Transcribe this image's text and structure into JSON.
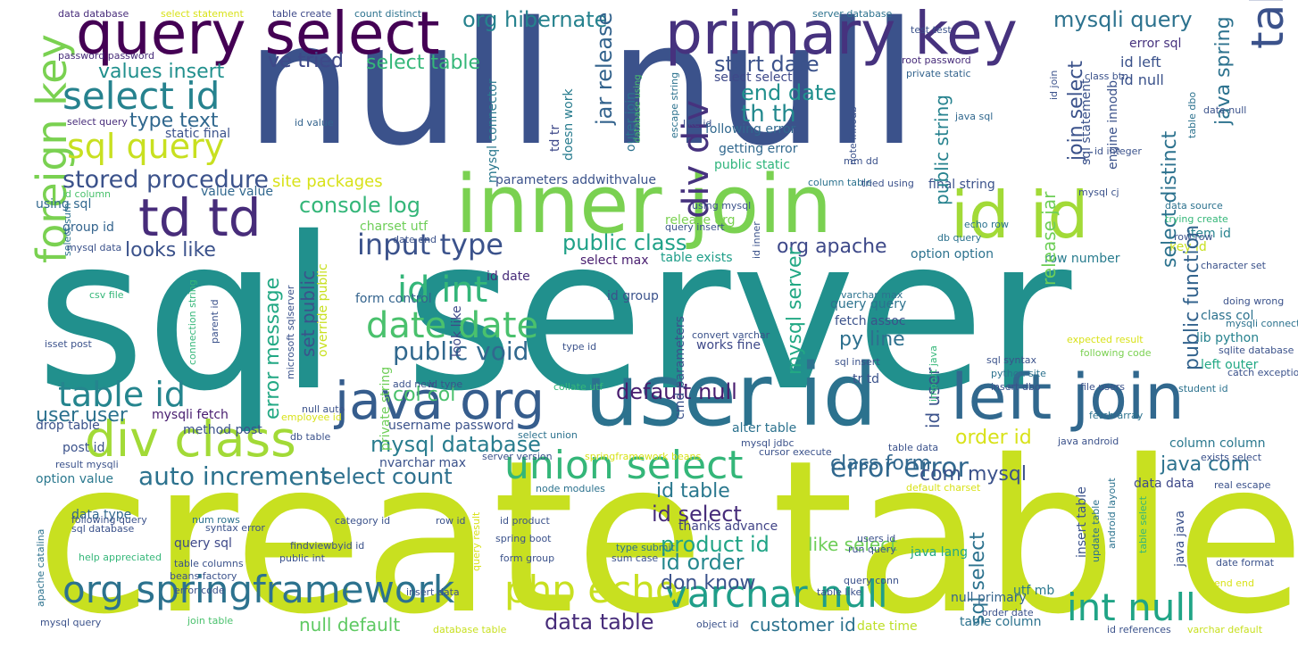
{
  "words": [
    {
      "text": "sql server",
      "color": "#21908d"
    },
    {
      "text": "create table",
      "color": "#c8e020"
    },
    {
      "text": "null null",
      "color": "#3b528b"
    },
    {
      "text": "inner join",
      "color": "#7ad151"
    },
    {
      "text": "user id",
      "color": "#2c728e"
    },
    {
      "text": "query select",
      "color": "#440154"
    },
    {
      "text": "primary key",
      "color": "#46327e"
    },
    {
      "text": "left join",
      "color": "#31688e"
    },
    {
      "text": "java org",
      "color": "#365d8d"
    },
    {
      "text": "div class",
      "color": "#a2da37"
    },
    {
      "text": "td td",
      "color": "#472c7a"
    },
    {
      "text": "id id",
      "color": "#a2da37"
    },
    {
      "text": "table table",
      "color": "#3b528b"
    },
    {
      "text": "foreign key",
      "color": "#7ad151"
    },
    {
      "text": "org springframework",
      "color": "#2c728e"
    },
    {
      "text": "union select",
      "color": "#34b679"
    },
    {
      "text": "varchar null",
      "color": "#1f9e89"
    },
    {
      "text": "int null",
      "color": "#20a486"
    },
    {
      "text": "php echo",
      "color": "#c8e020"
    },
    {
      "text": "sql query",
      "color": "#c8e020"
    },
    {
      "text": "select id",
      "color": "#26828e"
    },
    {
      "text": "input type",
      "color": "#3b528b"
    },
    {
      "text": "date date",
      "color": "#4ac16d"
    },
    {
      "text": "id int",
      "color": "#34b679"
    },
    {
      "text": "table id",
      "color": "#25858e"
    },
    {
      "text": "div div",
      "color": "#46327e"
    },
    {
      "text": "auto increment",
      "color": "#2c728e"
    },
    {
      "text": "error error",
      "color": "#31688e"
    },
    {
      "text": "public void",
      "color": "#31688e"
    },
    {
      "text": "stored procedure",
      "color": "#3b528b"
    },
    {
      "text": "console log",
      "color": "#34b679"
    },
    {
      "text": "public class",
      "color": "#1fa187"
    },
    {
      "text": "mysql database",
      "color": "#287c8e"
    },
    {
      "text": "select count",
      "color": "#2d708e"
    },
    {
      "text": "default null",
      "color": "#481d6f"
    },
    {
      "text": "product id",
      "color": "#20a486"
    },
    {
      "text": "id order",
      "color": "#24878e"
    },
    {
      "text": "id select",
      "color": "#472c7a"
    },
    {
      "text": "data table",
      "color": "#472c7a"
    },
    {
      "text": "th th",
      "color": "#23898e"
    },
    {
      "text": "end date",
      "color": "#21908d"
    },
    {
      "text": "start date",
      "color": "#3b528b"
    },
    {
      "text": "org hibernate",
      "color": "#26828e"
    },
    {
      "text": "mysqli query",
      "color": "#2c728e"
    },
    {
      "text": "values insert",
      "color": "#21908d"
    },
    {
      "text": "select table",
      "color": "#35b779"
    },
    {
      "text": "ve tried",
      "color": "#3e4989"
    },
    {
      "text": "type text",
      "color": "#31688e"
    },
    {
      "text": "looks like",
      "color": "#3b528b"
    },
    {
      "text": "org apache",
      "color": "#3e4989"
    },
    {
      "text": "py line",
      "color": "#2d708e"
    },
    {
      "text": "col col",
      "color": "#4ac16d"
    },
    {
      "text": "class form",
      "color": "#31688e"
    },
    {
      "text": "com mysql",
      "color": "#3b528b"
    },
    {
      "text": "java com",
      "color": "#2c728e"
    },
    {
      "text": "order id",
      "color": "#d8e219"
    },
    {
      "text": "user user",
      "color": "#2c728e"
    },
    {
      "text": "don know",
      "color": "#3b528b"
    },
    {
      "text": "customer id",
      "color": "#2c728e"
    },
    {
      "text": "null default",
      "color": "#5ec962"
    },
    {
      "text": "id table",
      "color": "#2a788e"
    },
    {
      "text": "like select",
      "color": "#6ece58"
    },
    {
      "text": "site packages",
      "color": "#d8e219"
    },
    {
      "text": "value value",
      "color": "#31688e"
    },
    {
      "text": "using sql",
      "color": "#31688e"
    },
    {
      "text": "group id",
      "color": "#33638d"
    },
    {
      "text": "drop table",
      "color": "#3b528b"
    },
    {
      "text": "mysqli fetch",
      "color": "#481d6f"
    },
    {
      "text": "method post",
      "color": "#3b528b"
    },
    {
      "text": "post id",
      "color": "#3b528b"
    },
    {
      "text": "option value",
      "color": "#2a788e"
    },
    {
      "text": "static final",
      "color": "#3b528b"
    },
    {
      "text": "data type",
      "color": "#31688e"
    },
    {
      "text": "query sql",
      "color": "#3e4989"
    },
    {
      "text": "thanks advance",
      "color": "#414487"
    },
    {
      "text": "java lang",
      "color": "#22a884"
    },
    {
      "text": "utf mb",
      "color": "#2a788e"
    },
    {
      "text": "null primary",
      "color": "#33638d"
    },
    {
      "text": "table column",
      "color": "#2c728e"
    },
    {
      "text": "date time",
      "color": "#bddf26"
    },
    {
      "text": "id null",
      "color": "#3b528b"
    },
    {
      "text": "id left",
      "color": "#3b528b"
    },
    {
      "text": "error sql",
      "color": "#46327e"
    },
    {
      "text": "item id",
      "color": "#26828e"
    },
    {
      "text": "key id",
      "color": "#c8e020"
    },
    {
      "text": "option option",
      "color": "#2c728e"
    },
    {
      "text": "row number",
      "color": "#287c8e"
    },
    {
      "text": "class col",
      "color": "#2c728e"
    },
    {
      "text": "lib python",
      "color": "#26828e"
    },
    {
      "text": "left outer",
      "color": "#22a884"
    },
    {
      "text": "data data",
      "color": "#3e4989"
    },
    {
      "text": "column column",
      "color": "#2a788e"
    },
    {
      "text": "username password",
      "color": "#3b528b"
    },
    {
      "text": "nvarchar max",
      "color": "#3b528b"
    },
    {
      "text": "alter table",
      "color": "#2c728e"
    },
    {
      "text": "works fine",
      "color": "#3e4989"
    },
    {
      "text": "query query",
      "color": "#2c728e"
    },
    {
      "text": "fetch assoc",
      "color": "#3b528b"
    },
    {
      "text": "tr td",
      "color": "#3b528b"
    },
    {
      "text": "id date",
      "color": "#472c7a"
    },
    {
      "text": "form control",
      "color": "#33638d"
    },
    {
      "text": "select max",
      "color": "#481d6f"
    },
    {
      "text": "table exists",
      "color": "#1f9e89"
    },
    {
      "text": "release org",
      "color": "#7ad151"
    },
    {
      "text": "charset utf",
      "color": "#6ece58"
    },
    {
      "text": "id group",
      "color": "#3b528b"
    },
    {
      "text": "parameters addwithvalue",
      "color": "#3b528b"
    },
    {
      "text": "getting error",
      "color": "#31688e"
    },
    {
      "text": "following error",
      "color": "#31688e"
    },
    {
      "text": "public static",
      "color": "#2fb47c"
    },
    {
      "text": "final string",
      "color": "#3b528b"
    },
    {
      "text": "select select",
      "color": "#3e4989"
    },
    {
      "text": "outer join",
      "color": "#2c728e"
    },
    {
      "text": "td tr",
      "color": "#3e4989"
    },
    {
      "text": "ve tried",
      "color": "#3e4989"
    },
    {
      "text": "jar release",
      "color": "#33638d"
    },
    {
      "text": "mysql connector",
      "color": "#2a788e"
    },
    {
      "text": "doesn work",
      "color": "#287c8e"
    },
    {
      "text": "database using",
      "color": "#4ac16d"
    },
    {
      "text": "java spring",
      "color": "#2c728e"
    },
    {
      "text": "join select",
      "color": "#3b528b"
    },
    {
      "text": "public string",
      "color": "#26828e"
    },
    {
      "text": "select distinct",
      "color": "#2c728e"
    },
    {
      "text": "public function",
      "color": "#33638d"
    },
    {
      "text": "release jar",
      "color": "#6ece58"
    },
    {
      "text": "sql statement",
      "color": "#3b528b"
    },
    {
      "text": "engine innodb",
      "color": "#3b528b"
    },
    {
      "text": "error message",
      "color": "#22a884"
    },
    {
      "text": "set public",
      "color": "#3b528b"
    },
    {
      "text": "override public",
      "color": "#c8e020"
    },
    {
      "text": "mysql server",
      "color": "#22a884"
    },
    {
      "text": "sql select",
      "color": "#2c728e"
    },
    {
      "text": "id user",
      "color": "#3b528b"
    },
    {
      "text": "private string",
      "color": "#6ece58"
    },
    {
      "text": "insert table",
      "color": "#3b528b"
    },
    {
      "text": "java java",
      "color": "#3b528b"
    },
    {
      "text": "look like",
      "color": "#3e4989"
    },
    {
      "text": "cmd parameters",
      "color": "#3b528b"
    },
    {
      "text": "data database",
      "color": "#472c7a"
    },
    {
      "text": "select statement",
      "color": "#d8e219"
    },
    {
      "text": "table create",
      "color": "#3e4989"
    },
    {
      "text": "count distinct",
      "color": "#2c728e"
    },
    {
      "text": "server database",
      "color": "#2c728e"
    },
    {
      "text": "test test",
      "color": "#3b528b"
    },
    {
      "text": "root password",
      "color": "#472c7a"
    },
    {
      "text": "private static",
      "color": "#33638d"
    },
    {
      "text": "password password",
      "color": "#472c7a"
    },
    {
      "text": "select query",
      "color": "#472c7a"
    },
    {
      "text": "id value",
      "color": "#33638d"
    },
    {
      "text": "like id",
      "color": "#3b528b"
    },
    {
      "text": "escape string",
      "color": "#2c728e"
    },
    {
      "text": "java sql",
      "color": "#31688e"
    },
    {
      "text": "id join",
      "color": "#3b528b"
    },
    {
      "text": "class btn",
      "color": "#3b528b"
    },
    {
      "text": "table dbo",
      "color": "#2c728e"
    },
    {
      "text": "date null",
      "color": "#3b528b"
    },
    {
      "text": "id integer",
      "color": "#3b528b"
    },
    {
      "text": "mm dd",
      "color": "#3b528b"
    },
    {
      "text": "note innodb",
      "color": "#3b528b"
    },
    {
      "text": "column table",
      "color": "#2c728e"
    },
    {
      "text": "tried using",
      "color": "#3b528b"
    },
    {
      "text": "mysql cj",
      "color": "#3b528b"
    },
    {
      "text": "using mysql",
      "color": "#3b528b"
    },
    {
      "text": "query insert",
      "color": "#3b528b"
    },
    {
      "text": "id inner",
      "color": "#3b528b"
    },
    {
      "text": "echo row",
      "color": "#2c728e"
    },
    {
      "text": "db query",
      "color": "#2c728e"
    },
    {
      "text": "data source",
      "color": "#2c728e"
    },
    {
      "text": "trying create",
      "color": "#35b779"
    },
    {
      "text": "row row",
      "color": "#3b528b"
    },
    {
      "text": "character set",
      "color": "#3b528b"
    },
    {
      "text": "id column",
      "color": "#4ac16d"
    },
    {
      "text": "select sum",
      "color": "#2c728e"
    },
    {
      "text": "mysql data",
      "color": "#3b528b"
    },
    {
      "text": "date end",
      "color": "#3b528b"
    },
    {
      "text": "csv file",
      "color": "#35b779"
    },
    {
      "text": "microsoft sqlserver",
      "color": "#3b528b"
    },
    {
      "text": "connection string",
      "color": "#35b779"
    },
    {
      "text": "parent id",
      "color": "#3b528b"
    },
    {
      "text": "isset post",
      "color": "#3b528b"
    },
    {
      "text": "doing wrong",
      "color": "#3b528b"
    },
    {
      "text": "mysqli connect",
      "color": "#2c728e"
    },
    {
      "text": "convert varchar",
      "color": "#3b528b"
    },
    {
      "text": "varchar max",
      "color": "#2c728e"
    },
    {
      "text": "type id",
      "color": "#3b528b"
    },
    {
      "text": "expected result",
      "color": "#d8e219"
    },
    {
      "text": "following code",
      "color": "#7ad151"
    },
    {
      "text": "sqlite database",
      "color": "#3b528b"
    },
    {
      "text": "sql insert",
      "color": "#3b528b"
    },
    {
      "text": "sql syntax",
      "color": "#3b528b"
    },
    {
      "text": "python site",
      "color": "#2c728e"
    },
    {
      "text": "catch exception",
      "color": "#3b528b"
    },
    {
      "text": "add new",
      "color": "#3b528b"
    },
    {
      "text": "id type",
      "color": "#3b528b"
    },
    {
      "text": "collate utf",
      "color": "#35b779"
    },
    {
      "text": "import java",
      "color": "#35b779"
    },
    {
      "text": "insert dbo",
      "color": "#3b528b"
    },
    {
      "text": "file users",
      "color": "#3b528b"
    },
    {
      "text": "student id",
      "color": "#2c728e"
    },
    {
      "text": "null auto",
      "color": "#3b528b"
    },
    {
      "text": "employee id",
      "color": "#d8e219"
    },
    {
      "text": "fetch array",
      "color": "#2c728e"
    },
    {
      "text": "db table",
      "color": "#3b528b"
    },
    {
      "text": "mysql jdbc",
      "color": "#3b528b"
    },
    {
      "text": "cursor execute",
      "color": "#3b528b"
    },
    {
      "text": "table data",
      "color": "#3b528b"
    },
    {
      "text": "java android",
      "color": "#3b528b"
    },
    {
      "text": "exists select",
      "color": "#3b528b"
    },
    {
      "text": "select union",
      "color": "#2c728e"
    },
    {
      "text": "result mysqli",
      "color": "#3b528b"
    },
    {
      "text": "server version",
      "color": "#3b528b"
    },
    {
      "text": "springframework beans",
      "color": "#d8e219"
    },
    {
      "text": "node modules",
      "color": "#2c728e"
    },
    {
      "text": "default charset",
      "color": "#d8e219"
    },
    {
      "text": "real escape",
      "color": "#3b528b"
    },
    {
      "text": "following query",
      "color": "#3b528b"
    },
    {
      "text": "sql database",
      "color": "#3b528b"
    },
    {
      "text": "num rows",
      "color": "#2c728e"
    },
    {
      "text": "syntax error",
      "color": "#3b528b"
    },
    {
      "text": "category id",
      "color": "#3b528b"
    },
    {
      "text": "row id",
      "color": "#3b528b"
    },
    {
      "text": "id product",
      "color": "#3b528b"
    },
    {
      "text": "query result",
      "color": "#d8e219"
    },
    {
      "text": "spring boot",
      "color": "#3b528b"
    },
    {
      "text": "type submit",
      "color": "#2c728e"
    },
    {
      "text": "users id",
      "color": "#3b528b"
    },
    {
      "text": "run query",
      "color": "#3b528b"
    },
    {
      "text": "update table",
      "color": "#2c728e"
    },
    {
      "text": "android layout",
      "color": "#2c728e"
    },
    {
      "text": "table select",
      "color": "#35b779"
    },
    {
      "text": "date format",
      "color": "#3b528b"
    },
    {
      "text": "end end",
      "color": "#d8e219"
    },
    {
      "text": "apache catalina",
      "color": "#2c728e"
    },
    {
      "text": "help appreciated",
      "color": "#35b779"
    },
    {
      "text": "table columns",
      "color": "#3b528b"
    },
    {
      "text": "beans factory",
      "color": "#3b528b"
    },
    {
      "text": "public int",
      "color": "#3b528b"
    },
    {
      "text": "findviewbyid id",
      "color": "#3b528b"
    },
    {
      "text": "form group",
      "color": "#3b528b"
    },
    {
      "text": "sum case",
      "color": "#3b528b"
    },
    {
      "text": "query conn",
      "color": "#3b528b"
    },
    {
      "text": "error code",
      "color": "#3b528b"
    },
    {
      "text": "insert data",
      "color": "#3b528b"
    },
    {
      "text": "table like",
      "color": "#3b528b"
    },
    {
      "text": "order date",
      "color": "#3b528b"
    },
    {
      "text": "mysql query",
      "color": "#3b528b"
    },
    {
      "text": "join table",
      "color": "#4ac16d"
    },
    {
      "text": "database table",
      "color": "#c8e020"
    },
    {
      "text": "object id",
      "color": "#3b528b"
    },
    {
      "text": "id references",
      "color": "#3b528b"
    },
    {
      "text": "varchar default",
      "color": "#c8e020"
    }
  ]
}
